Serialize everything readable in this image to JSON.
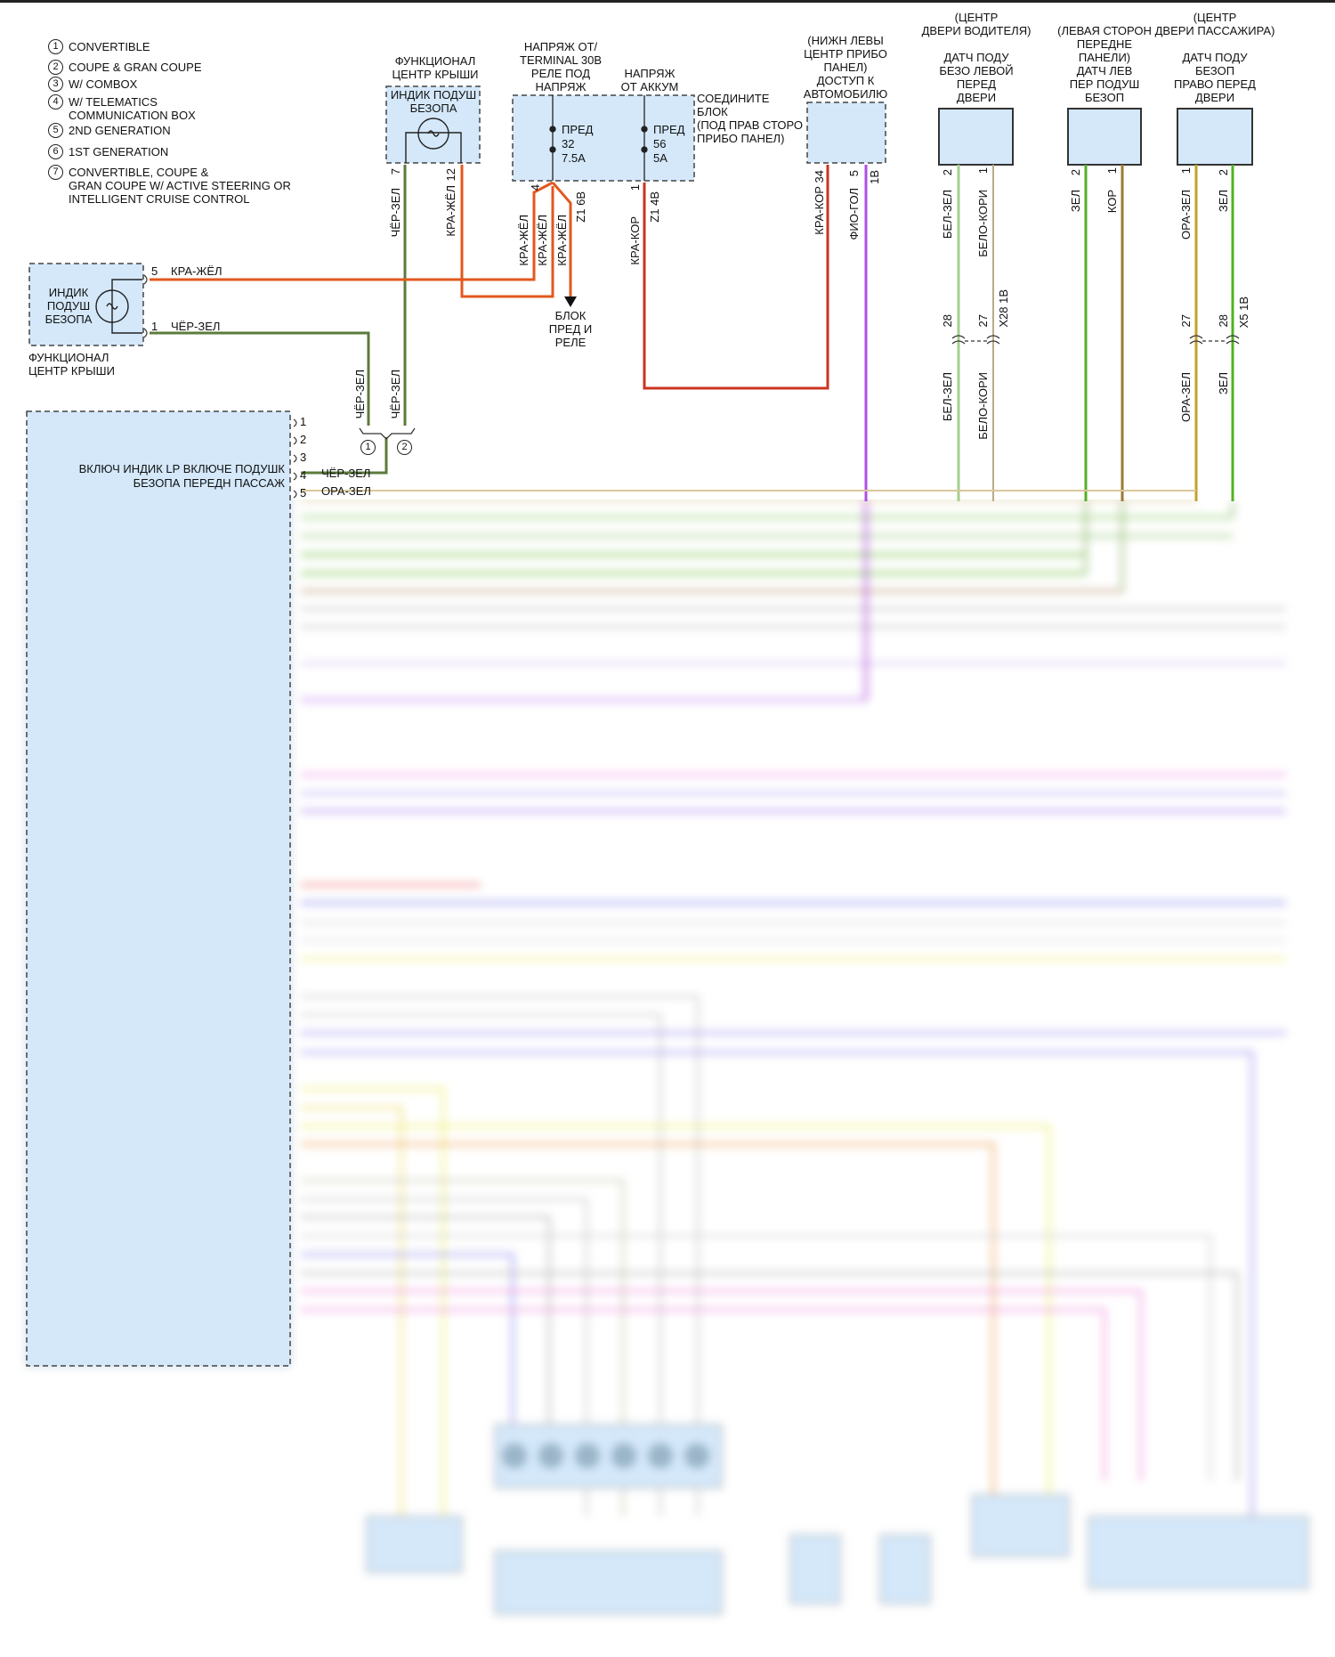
{
  "legend": [
    {
      "num": "1",
      "text": "CONVERTIBLE"
    },
    {
      "num": "2",
      "text": "COUPE & GRAN COUPE"
    },
    {
      "num": "3",
      "text": "W/ COMBOX"
    },
    {
      "num": "4",
      "text": "W/ TELEMATICS"
    },
    {
      "num": "",
      "text": "COMMUNICATION BOX"
    },
    {
      "num": "5",
      "text": "2ND GENERATION"
    },
    {
      "num": "6",
      "text": "1ST GENERATION"
    },
    {
      "num": "7",
      "text": "CONVERTIBLE, COUPE &"
    },
    {
      "num": "",
      "text": "GRAN COUPE W/ ACTIVE STEERING OR"
    },
    {
      "num": "",
      "text": "INTELLIGENT CRUISE CONTROL"
    }
  ],
  "roof_center": {
    "label": [
      "ФУНКЦИОНАЛ",
      "ЦЕНТР КРЫШИ"
    ],
    "inner": [
      "ИНДИК ПОДУШ",
      "БЕЗОПА"
    ],
    "pin_a": "7",
    "wire_a": "ЧЁР-ЗЕЛ",
    "pin_b": "12",
    "wire_b": "КРА-ЖЁЛ"
  },
  "fuse_block": {
    "label_left": [
      "НАПРЯЖ ОТ/",
      "TERMINAL 30B",
      "РЕЛЕ ПОД",
      "НАПРЯЖ"
    ],
    "label_right": [
      "НАПРЯЖ",
      "ОТ АККУМ"
    ],
    "side_label": [
      "СОЕДИНИТЕ",
      "БЛОК",
      "(ПОД ПРАВ СТОРО",
      "ПРИБО ПАНЕЛ)"
    ],
    "fuse1": [
      "ПРЕД",
      "32",
      "7.5A"
    ],
    "fuse2": [
      "ПРЕД",
      "56",
      "5A"
    ],
    "pin1": "4",
    "conn1": "Z1 6B",
    "pin2": "1",
    "conn2": "Z1 4B",
    "wires1": [
      "КРА-ЖЁЛ",
      "КРА-ЖЁЛ",
      "КРА-ЖЁЛ"
    ],
    "wire2": "КРА-КОР",
    "arrow_label": [
      "БЛОК",
      "ПРЕД И",
      "РЕЛЕ"
    ]
  },
  "access_module": {
    "label": [
      "(НИЖН ЛЕВЫ",
      "ЦЕНТР ПРИБО",
      "ПАНЕЛ)",
      "ДОСТУП К",
      "АВТОМОБИЛЮ"
    ],
    "wire_a": "КРА-КОР",
    "pin_a": "34",
    "pin_b": "5",
    "wire_b": "ФИО-ГОЛ",
    "conn": "1B"
  },
  "driver_door_sensor": {
    "label": [
      "(ЦЕНТР",
      "ДВЕРИ ВОДИТЕЛЯ)",
      "ДАТЧ ПОДУ",
      "БЕЗО ЛЕВОЙ",
      "ПЕРЕД",
      "ДВЕРИ"
    ],
    "pin_a": "2",
    "wire_a": "БЕЛ-ЗЕЛ",
    "pin_b": "1",
    "wire_b": "БЕЛО-КОРИ",
    "conn_pin_a": "28",
    "conn_pin_b": "27",
    "conn": "X28 1B"
  },
  "left_panel_sensor": {
    "label": [
      "(ЛЕВАЯ СТОРОН",
      "ПЕРЕДНЕ",
      "ПАНЕЛИ)",
      "ДАТЧ ЛЕВ",
      "ПЕР ПОДУШ",
      "БЕЗОП"
    ],
    "pin_a": "2",
    "wire_a": "ЗЕЛ",
    "pin_b": "1",
    "wire_b": "КОР"
  },
  "passenger_door_sensor": {
    "label": [
      "(ЦЕНТР",
      "ДВЕРИ ПАССАЖИРА)",
      "ДАТЧ ПОДУ",
      "БЕЗОП",
      "ПРАВО ПЕРЕД",
      "ДВЕРИ"
    ],
    "pin_a": "1",
    "wire_a": "ОРА-ЗЕЛ",
    "pin_b": "2",
    "wire_b": "ЗЕЛ",
    "conn_pin_a": "27",
    "conn_pin_b": "28",
    "conn": "X5 1B"
  },
  "roof_lamp": {
    "inner": [
      "ИНДИК",
      "ПОДУШ",
      "БЕЗОПА"
    ],
    "label": [
      "ФУНКЦИОНАЛ",
      "ЦЕНТР КРЫШИ"
    ],
    "pin_a": "5",
    "wire_a": "КРА-ЖЁЛ",
    "pin_b": "1",
    "wire_b": "ЧЁР-ЗЕЛ"
  },
  "splice": {
    "wire_a": "ЧЁР-ЗЕЛ",
    "wire_b": "ЧЁР-ЗЕЛ",
    "opt_a": "1",
    "opt_b": "2"
  },
  "airbag_module": {
    "pins": [
      "1",
      "2",
      "3",
      "4",
      "5"
    ],
    "pin4_label": [
      "ВКЛЮЧ ИНДИК LP ВКЛЮЧЕ ПОДУШК",
      "БЕЗОПА ПЕРЕДН ПАССАЖ"
    ],
    "pin4_wire": "ЧЁР-ЗЕЛ",
    "pin5_wire": "ОРА-ЗЕЛ"
  },
  "colors": {
    "module_fill": "#d4e8fa",
    "black_green": "#5b7b3b",
    "red_yellow": "#e2581e",
    "red_brown": "#cc3420",
    "violet_blue": "#b04fe0",
    "white_green": "#a6cf8e",
    "white_brown": "#b9ab8a",
    "green": "#52b024",
    "brown": "#9c7a32",
    "orange_green": "#c2a12e"
  }
}
